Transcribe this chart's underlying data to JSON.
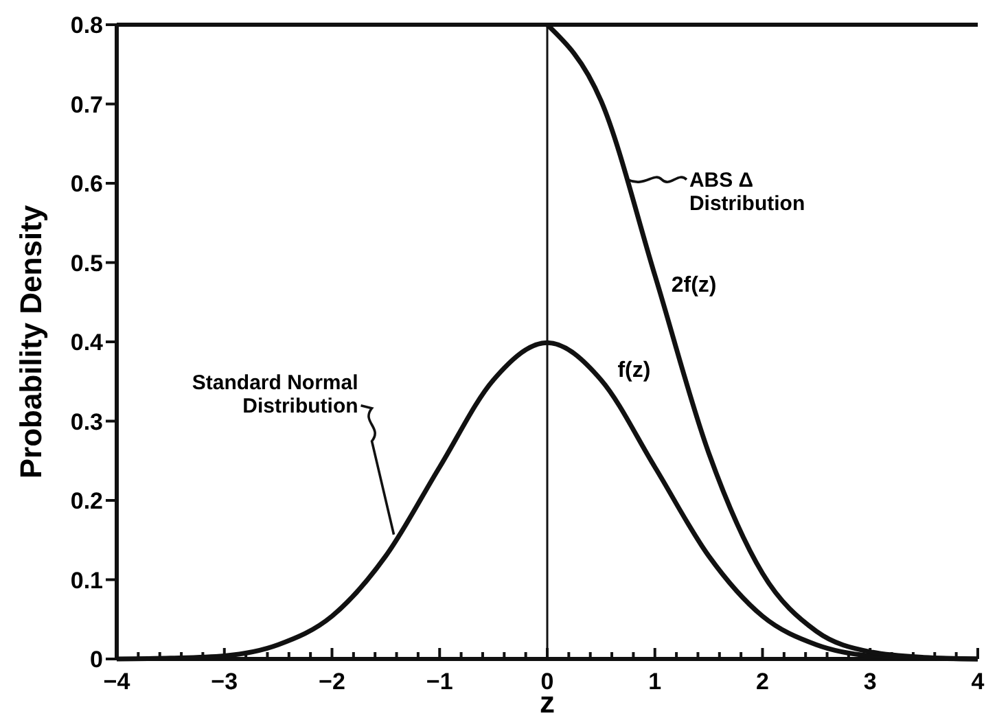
{
  "chart_data": {
    "type": "line",
    "xlabel": "z",
    "ylabel": "Probability Density",
    "xlim": [
      -4,
      4
    ],
    "ylim": [
      0,
      0.8
    ],
    "xticks": [
      {
        "value": -4,
        "label": "−4"
      },
      {
        "value": -3,
        "label": "−3"
      },
      {
        "value": -2,
        "label": "−2"
      },
      {
        "value": -1,
        "label": "−1"
      },
      0,
      1,
      2,
      3,
      4,
      {
        "value": -3.8,
        "label": null
      },
      {
        "value": -3.6,
        "label": null
      },
      {
        "value": -3.4,
        "label": null
      },
      {
        "value": -3.2,
        "label": null
      },
      {
        "value": -2.8,
        "label": null
      },
      {
        "value": -2.6,
        "label": null
      },
      {
        "value": -2.4,
        "label": null
      },
      {
        "value": -2.2,
        "label": null
      },
      {
        "value": -1.8,
        "label": null
      },
      {
        "value": -1.6,
        "label": null
      },
      {
        "value": -1.4,
        "label": null
      },
      {
        "value": -1.2,
        "label": null
      },
      {
        "value": -0.8,
        "label": null
      },
      {
        "value": -0.6,
        "label": null
      },
      {
        "value": -0.4,
        "label": null
      },
      {
        "value": -0.2,
        "label": null
      },
      {
        "value": 0.2,
        "label": null
      },
      {
        "value": 0.4,
        "label": null
      },
      {
        "value": 0.6,
        "label": null
      },
      {
        "value": 0.8,
        "label": null
      },
      {
        "value": 1.2,
        "label": null
      },
      {
        "value": 1.4,
        "label": null
      },
      {
        "value": 1.6,
        "label": null
      },
      {
        "value": 1.8,
        "label": null
      },
      {
        "value": 2.2,
        "label": null
      },
      {
        "value": 2.4,
        "label": null
      },
      {
        "value": 2.6,
        "label": null
      },
      {
        "value": 2.8,
        "label": null
      },
      {
        "value": 3.2,
        "label": null
      },
      {
        "value": 3.4,
        "label": null
      },
      {
        "value": 3.6,
        "label": null
      },
      {
        "value": 3.8,
        "label": null
      }
    ],
    "yticks": [
      0,
      0.1,
      0.2,
      0.3,
      0.4,
      0.5,
      0.6,
      0.7,
      0.8
    ],
    "series": [
      {
        "color": "#111111",
        "x": [
          -4,
          -3.5,
          -3,
          -2.5,
          -2,
          -1.5,
          -1,
          -0.5,
          0,
          0.5,
          1,
          1.5,
          2,
          2.5,
          3,
          3.5,
          4
        ],
        "values": [
          0,
          0.001,
          0.004,
          0.018,
          0.054,
          0.13,
          0.242,
          0.352,
          0.399,
          0.352,
          0.242,
          0.13,
          0.054,
          0.018,
          0.004,
          0.001,
          0
        ]
      },
      {
        "color": "#111111",
        "x": [
          0,
          0.5,
          1,
          1.5,
          2,
          2.5,
          3,
          3.5,
          4
        ],
        "values": [
          0.8,
          0.704,
          0.484,
          0.26,
          0.108,
          0.035,
          0.009,
          0.002,
          0
        ]
      }
    ],
    "ref_lines": [
      {
        "axis": "x",
        "value": 0,
        "label": null
      }
    ],
    "annotations": [
      "ABS Δ Distribution",
      {
        "text": "2f(z)",
        "x": 1,
        "y": 0.484
      },
      {
        "text": "f(z)",
        "x": 0.5,
        "y": 0.352
      },
      {
        "text": "Standard Normal Distribution",
        "x": -1.4,
        "y": 0.15
      }
    ]
  }
}
